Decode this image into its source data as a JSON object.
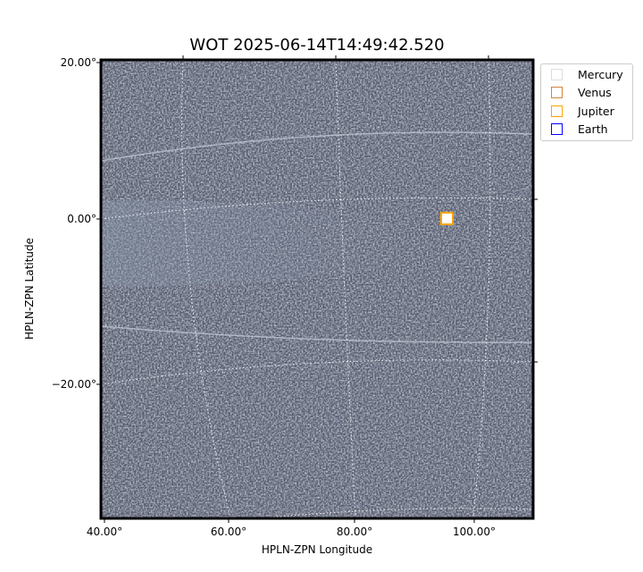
{
  "chart_data": {
    "type": "image",
    "title": "WOT 2025-06-14T14:49:42.520",
    "xlabel": "HPLN-ZPN Longitude",
    "ylabel": "HPLN-ZPN Latitude",
    "x_ticks": [
      "40.00°",
      "60.00°",
      "80.00°",
      "100.00°"
    ],
    "y_ticks": [
      "20.00°",
      "0.00°",
      "−20.00°"
    ],
    "grid": true,
    "colormap": "bone",
    "legend_position": "outside-top-right",
    "legend": [
      {
        "name": "Mercury",
        "color": "#dddddd"
      },
      {
        "name": "Venus",
        "color": "#d2843c"
      },
      {
        "name": "Jupiter",
        "color": "#ffa500"
      },
      {
        "name": "Earth",
        "color": "#0000ff"
      }
    ],
    "markers": [
      {
        "name": "Jupiter",
        "approx_lon_deg": 96,
        "approx_lat_deg": 0
      }
    ]
  }
}
